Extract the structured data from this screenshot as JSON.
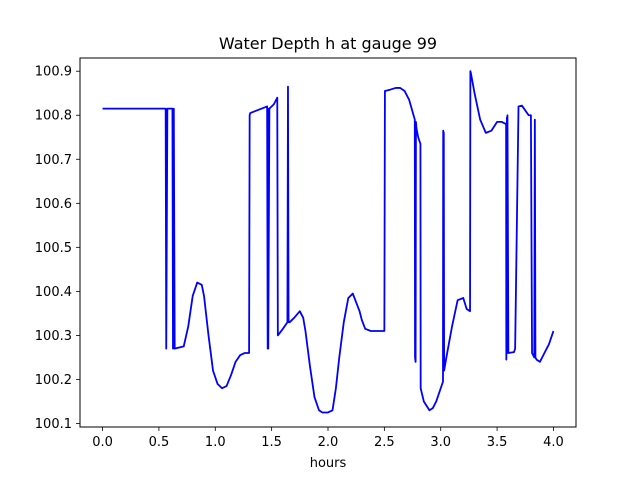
{
  "chart_data": {
    "type": "line",
    "title": "Water Depth h at gauge 99",
    "xlabel": "hours",
    "ylabel": "",
    "xlim": [
      -0.2,
      4.2
    ],
    "ylim": [
      100.092,
      100.93
    ],
    "xticks": [
      0.0,
      0.5,
      1.0,
      1.5,
      2.0,
      2.5,
      3.0,
      3.5,
      4.0
    ],
    "xtick_labels": [
      "0.0",
      "0.5",
      "1.0",
      "1.5",
      "2.0",
      "2.5",
      "3.0",
      "3.5",
      "4.0"
    ],
    "yticks": [
      100.1,
      100.2,
      100.3,
      100.4,
      100.5,
      100.6,
      100.7,
      100.8,
      100.9
    ],
    "ytick_labels": [
      "100.1",
      "100.2",
      "100.3",
      "100.4",
      "100.5",
      "100.6",
      "100.7",
      "100.8",
      "100.9"
    ],
    "grid": false,
    "series": [
      {
        "color": "#0000ff",
        "x": [
          0.0,
          0.56,
          0.565,
          0.575,
          0.62,
          0.625,
          0.632,
          0.64,
          0.72,
          0.76,
          0.8,
          0.84,
          0.88,
          0.9,
          0.94,
          0.98,
          1.02,
          1.06,
          1.1,
          1.14,
          1.18,
          1.22,
          1.26,
          1.3,
          1.305,
          1.31,
          1.46,
          1.465,
          1.47,
          1.47,
          1.48,
          1.52,
          1.55,
          1.555,
          1.6,
          1.64,
          1.645,
          1.65,
          1.66,
          1.7,
          1.75,
          1.78,
          1.8,
          1.84,
          1.88,
          1.92,
          1.95,
          2.0,
          2.04,
          2.07,
          2.1,
          2.14,
          2.18,
          2.22,
          2.25,
          2.28,
          2.3,
          2.33,
          2.38,
          2.43,
          2.47,
          2.5,
          2.505,
          2.55,
          2.6,
          2.64,
          2.68,
          2.72,
          2.77,
          2.772,
          2.777,
          2.78,
          2.785,
          2.8,
          2.82,
          2.822,
          2.85,
          2.9,
          2.93,
          2.96,
          3.0,
          3.02,
          3.022,
          3.027,
          3.03,
          3.05,
          3.1,
          3.15,
          3.2,
          3.23,
          3.26,
          3.263,
          3.268,
          3.3,
          3.35,
          3.4,
          3.45,
          3.5,
          3.54,
          3.58,
          3.582,
          3.587,
          3.59,
          3.592,
          3.6,
          3.65,
          3.66,
          3.69,
          3.72,
          3.78,
          3.8,
          3.81,
          3.82,
          3.83,
          3.835,
          3.84,
          3.85,
          3.88,
          3.92,
          3.96,
          4.0
        ],
        "y": [
          100.815,
          100.815,
          100.27,
          100.815,
          100.815,
          100.27,
          100.815,
          100.27,
          100.275,
          100.32,
          100.39,
          100.42,
          100.415,
          100.39,
          100.3,
          100.22,
          100.19,
          100.18,
          100.185,
          100.21,
          100.24,
          100.255,
          100.26,
          100.26,
          100.8,
          100.805,
          100.82,
          100.27,
          100.815,
          100.27,
          100.815,
          100.825,
          100.84,
          100.3,
          100.315,
          100.33,
          100.865,
          100.33,
          100.33,
          100.34,
          100.355,
          100.34,
          100.31,
          100.23,
          100.16,
          100.13,
          100.125,
          100.125,
          100.13,
          100.18,
          100.25,
          100.33,
          100.385,
          100.395,
          100.375,
          100.355,
          100.335,
          100.315,
          100.31,
          100.31,
          100.31,
          100.31,
          100.855,
          100.858,
          100.862,
          100.862,
          100.855,
          100.835,
          100.79,
          100.25,
          100.24,
          100.785,
          100.77,
          100.75,
          100.735,
          100.18,
          100.15,
          100.13,
          100.135,
          100.15,
          100.18,
          100.195,
          100.765,
          100.76,
          100.22,
          100.25,
          100.32,
          100.38,
          100.385,
          100.36,
          100.355,
          100.9,
          100.895,
          100.85,
          100.79,
          100.76,
          100.765,
          100.785,
          100.785,
          100.78,
          100.245,
          100.795,
          100.26,
          100.8,
          100.26,
          100.262,
          100.27,
          100.82,
          100.822,
          100.8,
          100.8,
          100.26,
          100.255,
          100.25,
          100.79,
          100.25,
          100.245,
          100.24,
          100.26,
          100.28,
          100.31
        ]
      }
    ]
  }
}
